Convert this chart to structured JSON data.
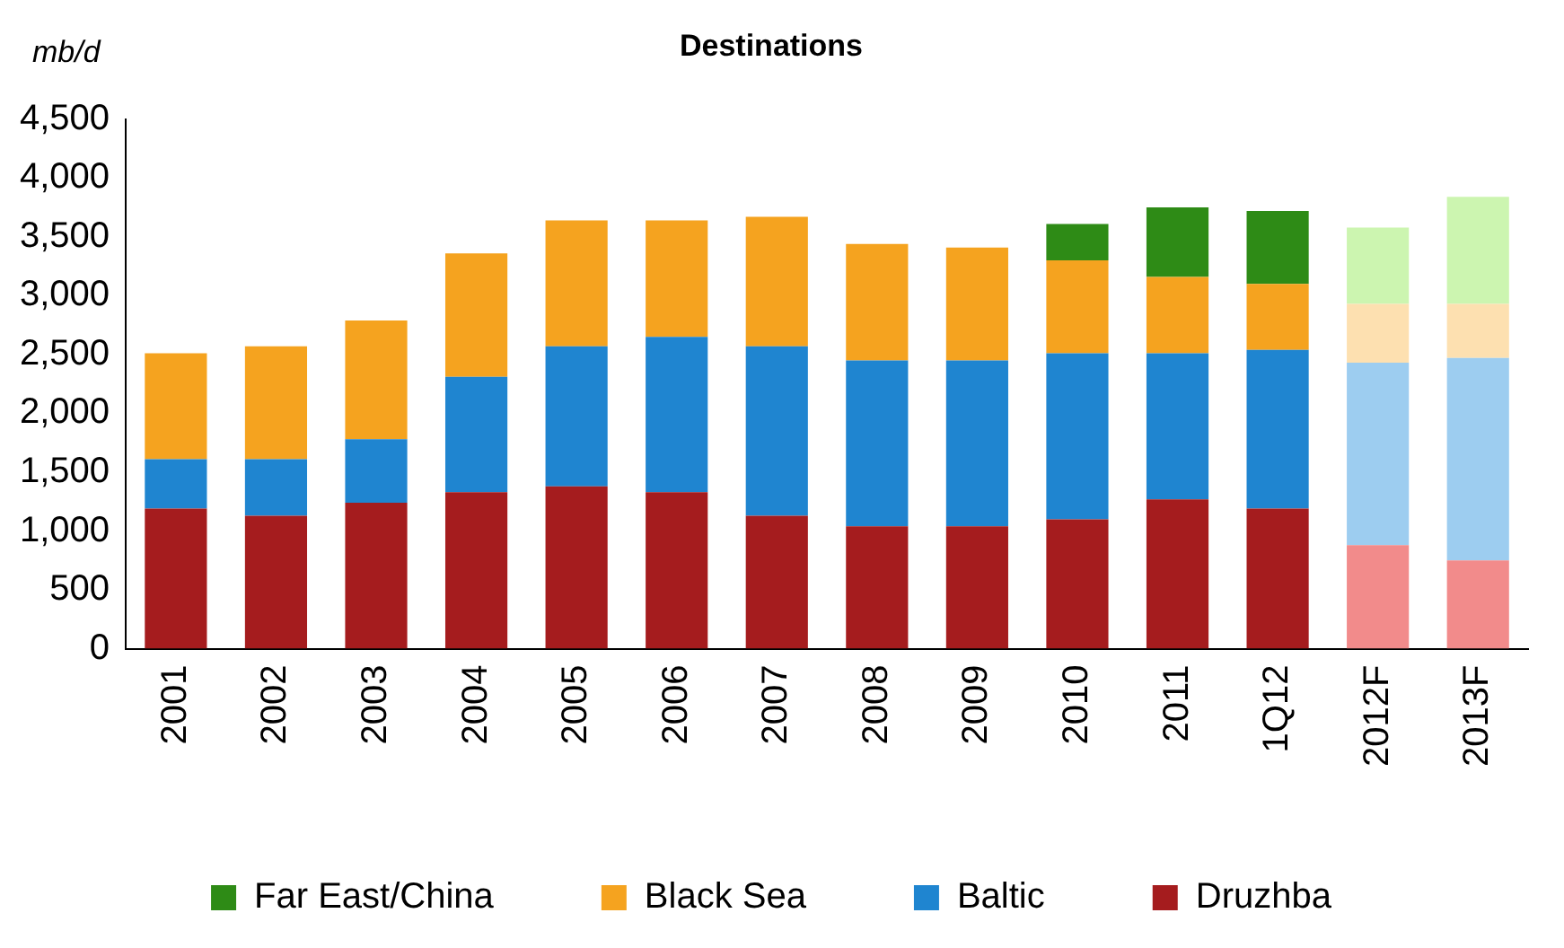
{
  "chart_data": {
    "type": "bar",
    "title": "Destinations",
    "ylabel": "mb/d",
    "stacked": true,
    "legend": "bottom",
    "grid": false,
    "categories": [
      "2001",
      "2002",
      "2003",
      "2004",
      "2005",
      "2006",
      "2007",
      "2008",
      "2009",
      "2010",
      "2011",
      "1Q12",
      "2012F",
      "2013F"
    ],
    "ylim": [
      0,
      4500
    ],
    "yticks": [
      0,
      {
        "value": 500,
        "label": "500"
      },
      {
        "value": 1000,
        "label": "1,000"
      },
      {
        "value": 1500,
        "label": "1,500"
      },
      {
        "value": 2000,
        "label": "2,000"
      },
      {
        "value": 2500,
        "label": "2,500"
      },
      {
        "value": 3000,
        "label": "3,000"
      },
      {
        "value": 3500,
        "label": "3,500"
      },
      {
        "value": 4000,
        "label": "4,000"
      },
      {
        "value": 4500,
        "label": "4,500"
      }
    ],
    "series": [
      {
        "name": "Druzhba",
        "color": "#a51c1e",
        "colors": [
          "#a51c1e",
          "#a51c1e",
          "#a51c1e",
          "#a51c1e",
          "#a51c1e",
          "#a51c1e",
          "#a51c1e",
          "#a51c1e",
          "#a51c1e",
          "#a51c1e",
          "#a51c1e",
          "#a51c1e",
          "#f28b8b",
          "#f28b8b"
        ],
        "values": [
          1190,
          1130,
          1240,
          1330,
          1380,
          1330,
          1130,
          1040,
          1040,
          1100,
          1270,
          1190,
          880,
          750
        ]
      },
      {
        "name": "Baltic",
        "color": "#1f85d0",
        "colors": [
          "#1f85d0",
          "#1f85d0",
          "#1f85d0",
          "#1f85d0",
          "#1f85d0",
          "#1f85d0",
          "#1f85d0",
          "#1f85d0",
          "#1f85d0",
          "#1f85d0",
          "#1f85d0",
          "#1f85d0",
          "#9dcdf0",
          "#9dcdf0"
        ],
        "values": [
          420,
          480,
          540,
          980,
          1190,
          1320,
          1440,
          1410,
          1410,
          1410,
          1240,
          1350,
          1550,
          1720
        ]
      },
      {
        "name": "Black Sea",
        "color": "#f5a31f",
        "colors": [
          "#f5a31f",
          "#f5a31f",
          "#f5a31f",
          "#f5a31f",
          "#f5a31f",
          "#f5a31f",
          "#f5a31f",
          "#f5a31f",
          "#f5a31f",
          "#f5a31f",
          "#f5a31f",
          "#f5a31f",
          "#fde0b0",
          "#fde0b0"
        ],
        "values": [
          900,
          960,
          1010,
          1050,
          1070,
          990,
          1100,
          990,
          960,
          790,
          650,
          560,
          500,
          460
        ]
      },
      {
        "name": "Far East/China",
        "color": "#2e8b16",
        "colors": [
          "#2e8b16",
          "#2e8b16",
          "#2e8b16",
          "#2e8b16",
          "#2e8b16",
          "#2e8b16",
          "#2e8b16",
          "#2e8b16",
          "#2e8b16",
          "#2e8b16",
          "#2e8b16",
          "#2e8b16",
          "#ccf5b0",
          "#ccf5b0"
        ],
        "values": [
          null,
          null,
          null,
          null,
          null,
          null,
          null,
          null,
          null,
          310,
          590,
          620,
          650,
          910
        ]
      }
    ]
  }
}
